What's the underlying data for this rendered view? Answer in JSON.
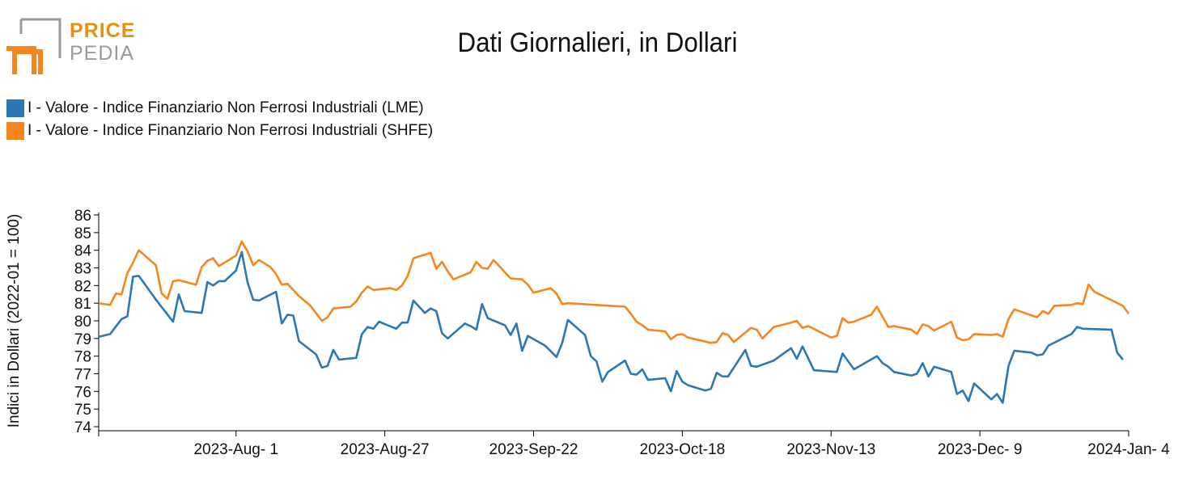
{
  "logo": {
    "word1": "PRICE",
    "word2": "PEDIA"
  },
  "colors": {
    "lme": "#2a78b5",
    "shfe": "#f7861f",
    "brand": "#e8900f"
  },
  "chart_data": {
    "type": "line",
    "title": "Dati Giornalieri, in Dollari",
    "ylabel": "Indici in Dollari (2022-01 = 100)",
    "xlabel": "",
    "ylim": [
      74,
      86
    ],
    "y_ticks": [
      74,
      75,
      76,
      77,
      78,
      79,
      80,
      81,
      82,
      83,
      84,
      85,
      86
    ],
    "x_tick_labels": [
      "2023-Aug- 1",
      "2023-Aug-27",
      "2023-Sep-22",
      "2023-Oct-18",
      "2023-Nov-13",
      "2023-Dec- 9",
      "2024-Jan- 4"
    ],
    "x_tick_dates": [
      "2023-08-01",
      "2023-08-27",
      "2023-09-22",
      "2023-10-18",
      "2023-11-13",
      "2023-12-09",
      "2024-01-04"
    ],
    "x_range": [
      "2023-07-08",
      "2024-01-04"
    ],
    "legend_position": "top-left",
    "grid": false,
    "series": [
      {
        "name": "I - Valore - Indice Finanziario Non Ferrosi Industriali (LME)",
        "color": "#2a78b5",
        "points": [
          [
            "2023-07-08",
            79.1
          ],
          [
            "2023-07-10",
            79.25
          ],
          [
            "2023-07-12",
            80.1
          ],
          [
            "2023-07-13",
            80.25
          ],
          [
            "2023-07-14",
            82.5
          ],
          [
            "2023-07-15",
            82.55
          ],
          [
            "2023-07-18",
            81.2
          ],
          [
            "2023-07-21",
            79.95
          ],
          [
            "2023-07-22",
            81.5
          ],
          [
            "2023-07-23",
            80.55
          ],
          [
            "2023-07-26",
            80.45
          ],
          [
            "2023-07-27",
            82.2
          ],
          [
            "2023-07-28",
            82.0
          ],
          [
            "2023-07-29",
            82.25
          ],
          [
            "2023-07-30",
            82.25
          ],
          [
            "2023-08-01",
            82.85
          ],
          [
            "2023-08-02",
            83.9
          ],
          [
            "2023-08-03",
            82.2
          ],
          [
            "2023-08-04",
            81.2
          ],
          [
            "2023-08-05",
            81.15
          ],
          [
            "2023-08-08",
            81.65
          ],
          [
            "2023-08-09",
            79.85
          ],
          [
            "2023-08-10",
            80.35
          ],
          [
            "2023-08-11",
            80.3
          ],
          [
            "2023-08-12",
            78.85
          ],
          [
            "2023-08-15",
            78.1
          ],
          [
            "2023-08-16",
            77.35
          ],
          [
            "2023-08-17",
            77.45
          ],
          [
            "2023-08-18",
            78.35
          ],
          [
            "2023-08-19",
            77.8
          ],
          [
            "2023-08-22",
            77.9
          ],
          [
            "2023-08-23",
            79.25
          ],
          [
            "2023-08-24",
            79.65
          ],
          [
            "2023-08-25",
            79.55
          ],
          [
            "2023-08-26",
            79.95
          ],
          [
            "2023-08-29",
            79.55
          ],
          [
            "2023-08-30",
            79.9
          ],
          [
            "2023-08-31",
            79.9
          ],
          [
            "2023-09-01",
            81.15
          ],
          [
            "2023-09-03",
            80.45
          ],
          [
            "2023-09-04",
            80.7
          ],
          [
            "2023-09-05",
            80.55
          ],
          [
            "2023-09-06",
            79.3
          ],
          [
            "2023-09-07",
            79.0
          ],
          [
            "2023-09-10",
            79.85
          ],
          [
            "2023-09-11",
            79.7
          ],
          [
            "2023-09-12",
            79.5
          ],
          [
            "2023-09-13",
            80.95
          ],
          [
            "2023-09-14",
            80.15
          ],
          [
            "2023-09-17",
            79.75
          ],
          [
            "2023-09-18",
            79.2
          ],
          [
            "2023-09-19",
            79.85
          ],
          [
            "2023-09-20",
            78.3
          ],
          [
            "2023-09-21",
            79.15
          ],
          [
            "2023-09-24",
            78.6
          ],
          [
            "2023-09-26",
            77.95
          ],
          [
            "2023-09-27",
            78.75
          ],
          [
            "2023-09-28",
            80.05
          ],
          [
            "2023-10-01",
            79.2
          ],
          [
            "2023-10-02",
            78.0
          ],
          [
            "2023-10-03",
            77.7
          ],
          [
            "2023-10-04",
            76.55
          ],
          [
            "2023-10-05",
            77.1
          ],
          [
            "2023-10-08",
            77.75
          ],
          [
            "2023-10-09",
            77.0
          ],
          [
            "2023-10-10",
            76.95
          ],
          [
            "2023-10-11",
            77.25
          ],
          [
            "2023-10-12",
            76.65
          ],
          [
            "2023-10-15",
            76.75
          ],
          [
            "2023-10-16",
            76.0
          ],
          [
            "2023-10-17",
            77.15
          ],
          [
            "2023-10-18",
            76.55
          ],
          [
            "2023-10-19",
            76.35
          ],
          [
            "2023-10-22",
            76.05
          ],
          [
            "2023-10-23",
            76.15
          ],
          [
            "2023-10-24",
            77.05
          ],
          [
            "2023-10-25",
            76.85
          ],
          [
            "2023-10-26",
            76.85
          ],
          [
            "2023-10-29",
            78.35
          ],
          [
            "2023-10-30",
            77.45
          ],
          [
            "2023-10-31",
            77.4
          ],
          [
            "2023-11-03",
            77.75
          ],
          [
            "2023-11-06",
            78.45
          ],
          [
            "2023-11-07",
            77.85
          ],
          [
            "2023-11-08",
            78.55
          ],
          [
            "2023-11-10",
            77.2
          ],
          [
            "2023-11-14",
            77.1
          ],
          [
            "2023-11-15",
            78.15
          ],
          [
            "2023-11-17",
            77.25
          ],
          [
            "2023-11-21",
            78.0
          ],
          [
            "2023-11-22",
            77.6
          ],
          [
            "2023-11-23",
            77.4
          ],
          [
            "2023-11-24",
            77.1
          ],
          [
            "2023-11-27",
            76.9
          ],
          [
            "2023-11-28",
            77.0
          ],
          [
            "2023-11-29",
            77.6
          ],
          [
            "2023-11-30",
            76.85
          ],
          [
            "2023-12-01",
            77.4
          ],
          [
            "2023-12-04",
            77.1
          ],
          [
            "2023-12-05",
            75.85
          ],
          [
            "2023-12-06",
            76.05
          ],
          [
            "2023-12-07",
            75.45
          ],
          [
            "2023-12-08",
            76.45
          ],
          [
            "2023-12-11",
            75.55
          ],
          [
            "2023-12-12",
            75.85
          ],
          [
            "2023-12-13",
            75.35
          ],
          [
            "2023-12-14",
            77.45
          ],
          [
            "2023-12-15",
            78.3
          ],
          [
            "2023-12-18",
            78.2
          ],
          [
            "2023-12-19",
            78.05
          ],
          [
            "2023-12-20",
            78.1
          ],
          [
            "2023-12-21",
            78.6
          ],
          [
            "2023-12-25",
            79.25
          ],
          [
            "2023-12-26",
            79.65
          ],
          [
            "2023-12-27",
            79.55
          ],
          [
            "2024-01-01",
            79.5
          ],
          [
            "2024-01-02",
            78.2
          ],
          [
            "2024-01-03",
            77.8
          ]
        ]
      },
      {
        "name": "I - Valore - Indice Finanziario Non Ferrosi Industriali (SHFE)",
        "color": "#f7861f",
        "points": [
          [
            "2023-07-08",
            81.0
          ],
          [
            "2023-07-10",
            80.9
          ],
          [
            "2023-07-11",
            81.55
          ],
          [
            "2023-07-12",
            81.5
          ],
          [
            "2023-07-13",
            82.7
          ],
          [
            "2023-07-14",
            83.3
          ],
          [
            "2023-07-15",
            84.0
          ],
          [
            "2023-07-18",
            83.15
          ],
          [
            "2023-07-19",
            81.55
          ],
          [
            "2023-07-20",
            81.25
          ],
          [
            "2023-07-21",
            82.25
          ],
          [
            "2023-07-22",
            82.3
          ],
          [
            "2023-07-25",
            82.05
          ],
          [
            "2023-07-26",
            83.05
          ],
          [
            "2023-07-27",
            83.4
          ],
          [
            "2023-07-28",
            83.55
          ],
          [
            "2023-07-29",
            83.1
          ],
          [
            "2023-08-01",
            83.7
          ],
          [
            "2023-08-02",
            84.5
          ],
          [
            "2023-08-03",
            83.95
          ],
          [
            "2023-08-04",
            83.15
          ],
          [
            "2023-08-05",
            83.45
          ],
          [
            "2023-08-07",
            83.05
          ],
          [
            "2023-08-08",
            82.65
          ],
          [
            "2023-08-09",
            82.05
          ],
          [
            "2023-08-10",
            82.1
          ],
          [
            "2023-08-12",
            81.4
          ],
          [
            "2023-08-14",
            80.85
          ],
          [
            "2023-08-16",
            80.0
          ],
          [
            "2023-08-17",
            80.2
          ],
          [
            "2023-08-18",
            80.7
          ],
          [
            "2023-08-21",
            80.8
          ],
          [
            "2023-08-22",
            81.1
          ],
          [
            "2023-08-23",
            81.6
          ],
          [
            "2023-08-24",
            81.95
          ],
          [
            "2023-08-25",
            81.75
          ],
          [
            "2023-08-28",
            81.85
          ],
          [
            "2023-08-29",
            81.75
          ],
          [
            "2023-08-30",
            82.0
          ],
          [
            "2023-08-31",
            82.55
          ],
          [
            "2023-09-01",
            83.55
          ],
          [
            "2023-09-04",
            83.85
          ],
          [
            "2023-09-05",
            82.95
          ],
          [
            "2023-09-06",
            83.35
          ],
          [
            "2023-09-07",
            82.8
          ],
          [
            "2023-09-08",
            82.35
          ],
          [
            "2023-09-11",
            82.75
          ],
          [
            "2023-09-12",
            83.35
          ],
          [
            "2023-09-13",
            83.0
          ],
          [
            "2023-09-14",
            82.95
          ],
          [
            "2023-09-15",
            83.45
          ],
          [
            "2023-09-18",
            82.4
          ],
          [
            "2023-09-20",
            82.35
          ],
          [
            "2023-09-21",
            82.05
          ],
          [
            "2023-09-22",
            81.6
          ],
          [
            "2023-09-25",
            81.85
          ],
          [
            "2023-09-26",
            81.55
          ],
          [
            "2023-09-27",
            80.95
          ],
          [
            "2023-09-28",
            81.0
          ],
          [
            "2023-10-08",
            80.8
          ],
          [
            "2023-10-09",
            80.4
          ],
          [
            "2023-10-10",
            79.95
          ],
          [
            "2023-10-11",
            79.75
          ],
          [
            "2023-10-12",
            79.5
          ],
          [
            "2023-10-15",
            79.4
          ],
          [
            "2023-10-16",
            78.95
          ],
          [
            "2023-10-17",
            79.2
          ],
          [
            "2023-10-18",
            79.25
          ],
          [
            "2023-10-19",
            79.05
          ],
          [
            "2023-10-23",
            78.75
          ],
          [
            "2023-10-24",
            78.8
          ],
          [
            "2023-10-25",
            79.3
          ],
          [
            "2023-10-26",
            79.2
          ],
          [
            "2023-10-27",
            78.8
          ],
          [
            "2023-10-30",
            79.6
          ],
          [
            "2023-10-31",
            79.5
          ],
          [
            "2023-11-01",
            79.0
          ],
          [
            "2023-11-03",
            79.65
          ],
          [
            "2023-11-06",
            79.9
          ],
          [
            "2023-11-07",
            80.0
          ],
          [
            "2023-11-08",
            79.6
          ],
          [
            "2023-11-09",
            79.7
          ],
          [
            "2023-11-13",
            79.05
          ],
          [
            "2023-11-14",
            79.15
          ],
          [
            "2023-11-15",
            80.15
          ],
          [
            "2023-11-16",
            79.9
          ],
          [
            "2023-11-17",
            79.95
          ],
          [
            "2023-11-20",
            80.35
          ],
          [
            "2023-11-21",
            80.8
          ],
          [
            "2023-11-23",
            79.65
          ],
          [
            "2023-11-24",
            79.7
          ],
          [
            "2023-11-27",
            79.5
          ],
          [
            "2023-11-28",
            79.25
          ],
          [
            "2023-11-29",
            79.8
          ],
          [
            "2023-11-30",
            79.7
          ],
          [
            "2023-12-01",
            79.45
          ],
          [
            "2023-12-04",
            79.95
          ],
          [
            "2023-12-05",
            79.05
          ],
          [
            "2023-12-06",
            78.9
          ],
          [
            "2023-12-07",
            78.95
          ],
          [
            "2023-12-08",
            79.25
          ],
          [
            "2023-12-11",
            79.2
          ],
          [
            "2023-12-12",
            79.25
          ],
          [
            "2023-12-13",
            79.1
          ],
          [
            "2023-12-14",
            80.1
          ],
          [
            "2023-12-15",
            80.65
          ],
          [
            "2023-12-19",
            80.2
          ],
          [
            "2023-12-20",
            80.55
          ],
          [
            "2023-12-21",
            80.4
          ],
          [
            "2023-12-22",
            80.85
          ],
          [
            "2023-12-25",
            80.9
          ],
          [
            "2023-12-26",
            81.0
          ],
          [
            "2023-12-27",
            80.95
          ],
          [
            "2023-12-28",
            82.05
          ],
          [
            "2023-12-29",
            81.65
          ],
          [
            "2024-01-03",
            80.85
          ],
          [
            "2024-01-04",
            80.4
          ]
        ]
      }
    ]
  }
}
